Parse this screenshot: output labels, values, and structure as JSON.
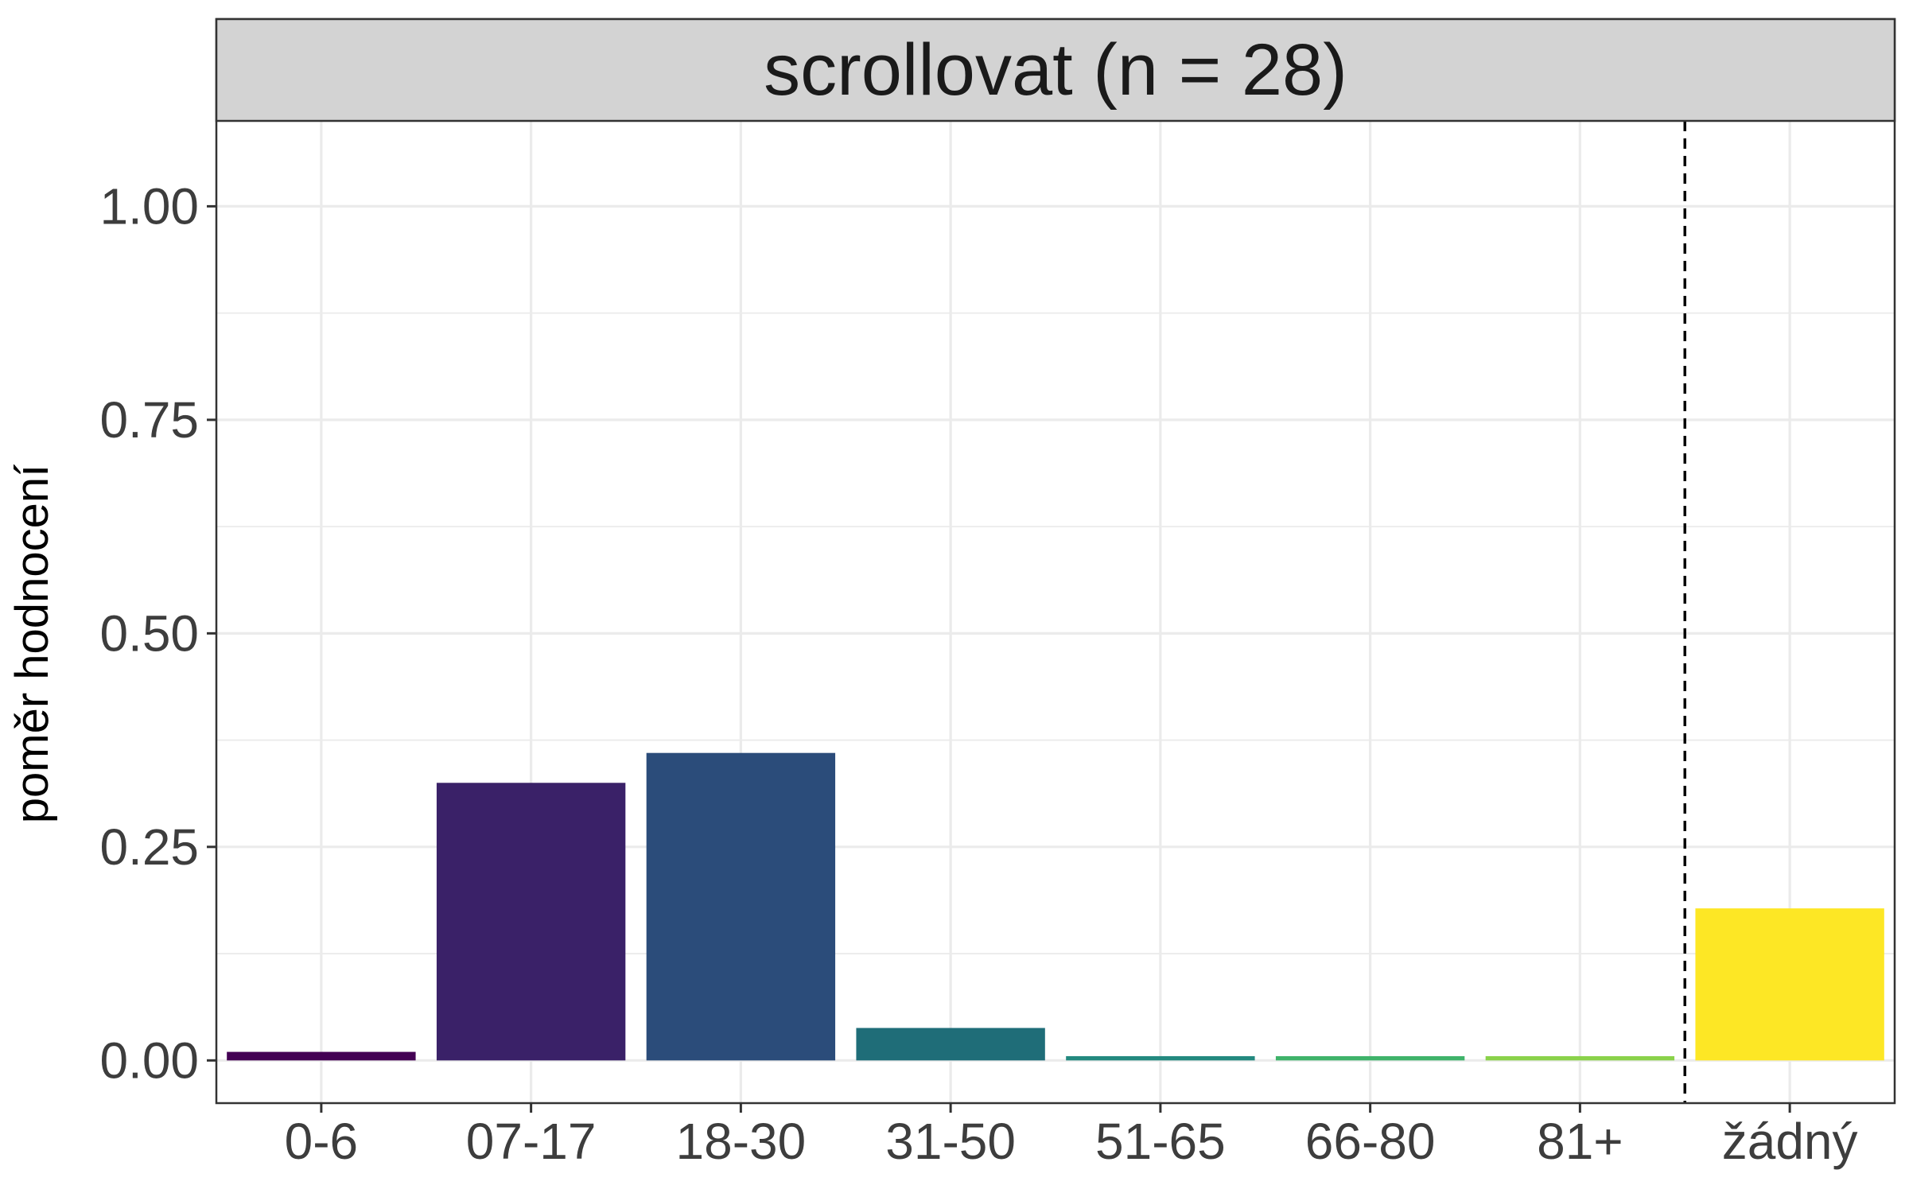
{
  "chart_data": {
    "type": "bar",
    "title": "scrollovat (n = 28)",
    "xlabel": "",
    "ylabel": "poměr hodnocení",
    "categories": [
      "0-6",
      "07-17",
      "18-30",
      "31-50",
      "51-65",
      "66-80",
      "81+",
      "žádný"
    ],
    "values": [
      0.01,
      0.325,
      0.36,
      0.038,
      0.005,
      0.005,
      0.005,
      0.178
    ],
    "colors": [
      "#440154",
      "#3a2168",
      "#2b4c7a",
      "#1f6d78",
      "#23897f",
      "#3fb36a",
      "#8ad24a",
      "#fde725"
    ],
    "ylim": [
      -0.05,
      1.1
    ],
    "yticks": [
      "0.00",
      "0.25",
      "0.50",
      "0.75",
      "1.00"
    ],
    "reference_line": {
      "style": "dashed",
      "between_categories": [
        "81+",
        "žádný"
      ]
    },
    "grid": true,
    "legend": "none",
    "theme": {
      "strip_background": "#d3d3d3",
      "grid_color": "#ebebeb",
      "panel_border": "#333333"
    }
  }
}
